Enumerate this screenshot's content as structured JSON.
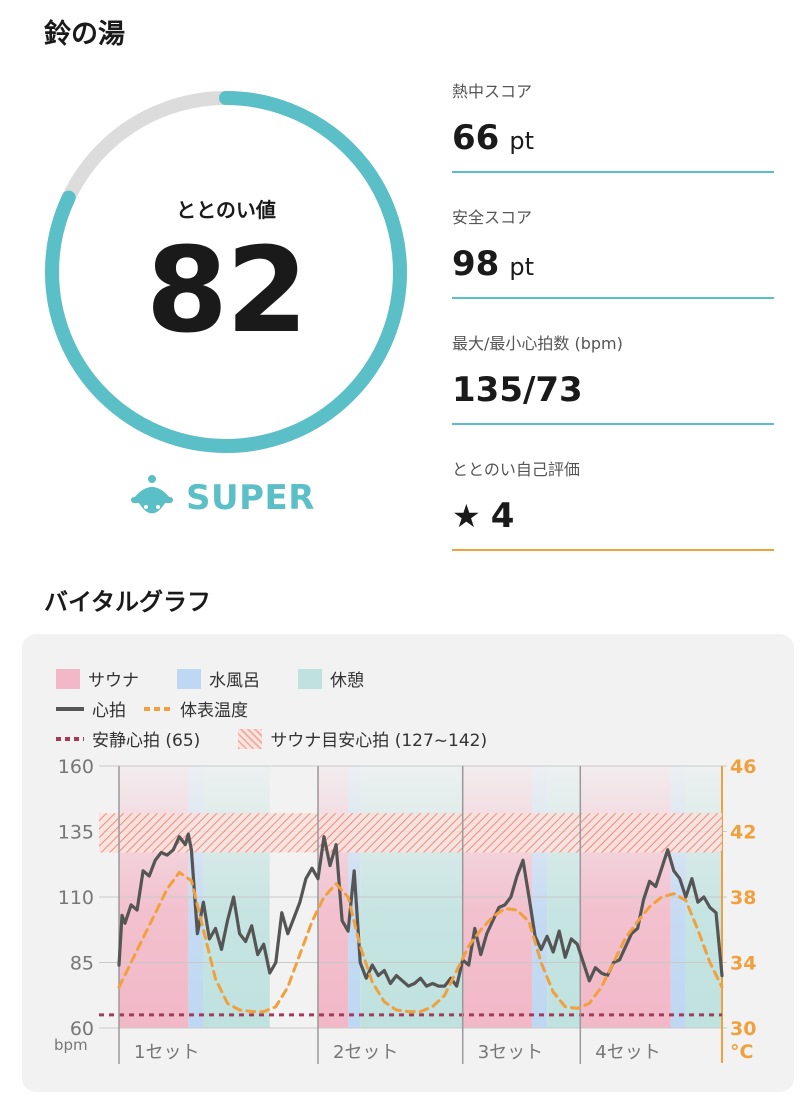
{
  "facility_name": "鈴の湯",
  "totonoi": {
    "label": "ととのい値",
    "value": "82",
    "rank": "SUPER",
    "ring_progress": 0.82,
    "ring_color": "#5bbfc7"
  },
  "stats": [
    {
      "label": "熱中スコア",
      "value": "66",
      "unit": "pt"
    },
    {
      "label": "安全スコア",
      "value": "98",
      "unit": "pt"
    },
    {
      "label": "最大/最小心拍数 (bpm)",
      "value": "135/73",
      "unit": ""
    },
    {
      "label": "ととのい自己評価",
      "star": "★",
      "value": "4",
      "unit": ""
    }
  ],
  "vital_graph": {
    "title": "バイタルグラフ",
    "legend": {
      "sauna": "サウナ",
      "cold_bath": "水風呂",
      "rest": "休憩",
      "heart_rate": "心拍",
      "body_temp": "体表温度",
      "resting_hr": "安静心拍 (65)",
      "target_hr": "サウナ目安心拍 (127~142)"
    },
    "colors": {
      "sauna": "#f2b8c8",
      "cold_bath": "#bed7f2",
      "rest": "#bfe2df",
      "heart_rate": "#555555",
      "body_temp": "#f0a03c",
      "resting_hr": "#a03c5a",
      "target_hr": "#e8806e"
    },
    "left_unit": "bpm",
    "right_unit": "°C",
    "set_labels": [
      "1セット",
      "2セット",
      "3セット",
      "4セット"
    ]
  },
  "chart_data": {
    "type": "line",
    "x_range": [
      0,
      100
    ],
    "y_left": {
      "label": "bpm",
      "ticks": [
        160,
        135,
        110,
        85,
        60
      ],
      "range": [
        60,
        160
      ]
    },
    "y_right": {
      "label": "°C",
      "ticks": [
        46,
        42,
        38,
        34,
        30
      ],
      "range": [
        30,
        46
      ]
    },
    "resting_hr": 65,
    "target_band": [
      127,
      142
    ],
    "sets": [
      {
        "label": "1セット",
        "start": 0,
        "end": 33
      },
      {
        "label": "2セット",
        "start": 33,
        "end": 57
      },
      {
        "label": "3セット",
        "start": 57,
        "end": 76.5
      },
      {
        "label": "4セット",
        "start": 76.5,
        "end": 100
      }
    ],
    "phases": [
      {
        "type": "sauna",
        "start": 0,
        "end": 11.5
      },
      {
        "type": "cold_bath",
        "start": 11.5,
        "end": 14
      },
      {
        "type": "rest",
        "start": 14,
        "end": 25
      },
      {
        "type": "sauna",
        "start": 33,
        "end": 38
      },
      {
        "type": "cold_bath",
        "start": 38,
        "end": 40
      },
      {
        "type": "rest",
        "start": 40,
        "end": 57
      },
      {
        "type": "sauna",
        "start": 57,
        "end": 68.5
      },
      {
        "type": "cold_bath",
        "start": 68.5,
        "end": 71
      },
      {
        "type": "rest",
        "start": 71,
        "end": 76.5
      },
      {
        "type": "sauna",
        "start": 76.5,
        "end": 91.5
      },
      {
        "type": "cold_bath",
        "start": 91.5,
        "end": 94
      },
      {
        "type": "rest",
        "start": 94,
        "end": 100
      }
    ],
    "series": [
      {
        "name": "心拍",
        "axis": "left",
        "x": [
          0,
          0.5,
          1,
          2,
          3,
          4,
          5,
          6,
          7,
          8,
          9,
          10,
          11,
          11.5,
          12,
          13,
          14,
          15,
          16,
          17,
          18,
          19,
          20,
          21,
          22,
          23,
          24,
          25,
          26,
          27,
          28,
          29,
          30,
          31,
          32,
          33,
          34,
          35,
          36,
          37,
          38,
          39,
          40,
          41,
          42,
          43,
          44,
          45,
          46,
          47,
          48,
          49,
          50,
          51,
          52,
          53,
          54,
          55,
          56,
          57,
          58,
          59,
          60,
          61,
          62,
          63,
          64,
          65,
          66,
          67,
          68,
          69,
          70,
          71,
          72,
          73,
          74,
          75,
          76,
          77,
          78,
          79,
          80,
          81,
          82,
          83,
          84,
          85,
          86,
          87,
          88,
          89,
          90,
          91,
          92,
          93,
          94,
          95,
          96,
          97,
          98,
          99,
          100
        ],
        "y": [
          84,
          103,
          100,
          107,
          105,
          120,
          118,
          124,
          127,
          126,
          128,
          133,
          130,
          134,
          128,
          96,
          108,
          94,
          98,
          90,
          101,
          110,
          96,
          93,
          99,
          88,
          92,
          81,
          85,
          104,
          96,
          102,
          108,
          117,
          121,
          117,
          133,
          122,
          130,
          101,
          97,
          120,
          85,
          79,
          84,
          80,
          82,
          77,
          80,
          78,
          76,
          77,
          79,
          76,
          77,
          76,
          76,
          79,
          76,
          86,
          84,
          98,
          88,
          96,
          101,
          106,
          107,
          110,
          118,
          124,
          110,
          95,
          90,
          95,
          89,
          97,
          87,
          94,
          92,
          85,
          78,
          83,
          81,
          80,
          85,
          86,
          91,
          96,
          98,
          109,
          116,
          114,
          121,
          128,
          120,
          117,
          110,
          117,
          108,
          110,
          106,
          104,
          80
        ]
      },
      {
        "name": "体表温度",
        "axis": "right",
        "x": [
          0,
          2,
          4,
          6,
          8,
          10,
          12,
          14,
          16,
          18,
          20,
          22,
          24,
          26,
          28,
          30,
          32,
          34,
          36,
          38,
          40,
          42,
          44,
          46,
          48,
          50,
          52,
          54,
          56,
          58,
          60,
          62,
          64,
          66,
          68,
          70,
          72,
          74,
          76,
          78,
          80,
          82,
          84,
          86,
          88,
          90,
          92,
          94,
          96,
          98,
          100
        ],
        "y": [
          32.5,
          34,
          35.5,
          37,
          38.5,
          39.5,
          39,
          36,
          33,
          31.5,
          31.1,
          31,
          31,
          31.3,
          32.5,
          34.5,
          36.5,
          38,
          38.8,
          38,
          35,
          32.8,
          31.6,
          31.1,
          31,
          31,
          31.3,
          32,
          33.5,
          35,
          36,
          36.8,
          37.3,
          37.2,
          36.5,
          34,
          32.2,
          31.3,
          31.2,
          31.5,
          32.5,
          34,
          35.5,
          36.5,
          37.4,
          38,
          38.2,
          37.8,
          36,
          34,
          32.5
        ]
      }
    ]
  }
}
